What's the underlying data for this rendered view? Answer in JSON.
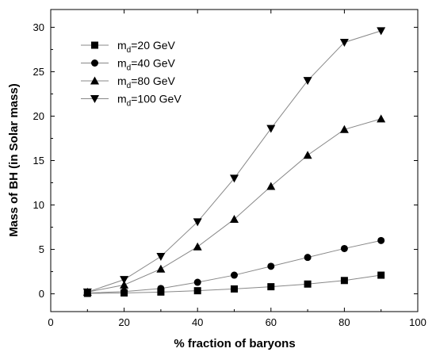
{
  "chart_data": {
    "type": "line",
    "xlabel": "% fraction of baryons",
    "ylabel": "Mass of BH (in Solar mass)",
    "xlim": [
      0,
      100
    ],
    "ylim": [
      -2,
      32
    ],
    "xticks": [
      0,
      20,
      40,
      60,
      80,
      100
    ],
    "yticks": [
      0,
      5,
      10,
      15,
      20,
      25,
      30
    ],
    "grid": false,
    "legend_position": "top-left",
    "x": [
      10,
      20,
      30,
      40,
      50,
      60,
      70,
      80,
      90
    ],
    "series": [
      {
        "name_main": "m",
        "name_sub": "d",
        "name_rest": "=20 GeV",
        "marker": "square",
        "values": [
          0.05,
          0.1,
          0.2,
          0.35,
          0.55,
          0.8,
          1.1,
          1.5,
          2.1
        ]
      },
      {
        "name_main": "m",
        "name_sub": "d",
        "name_rest": "=40 GeV",
        "marker": "circle",
        "values": [
          0.1,
          0.25,
          0.6,
          1.3,
          2.1,
          3.1,
          4.1,
          5.1,
          6.0
        ]
      },
      {
        "name_main": "m",
        "name_sub": "d",
        "name_rest": "=80 GeV",
        "marker": "triangle-up",
        "values": [
          0.2,
          1.0,
          2.8,
          5.3,
          8.4,
          12.1,
          15.6,
          18.5,
          19.7
        ]
      },
      {
        "name_main": "m",
        "name_sub": "d",
        "name_rest": "=100 GeV",
        "marker": "triangle-down",
        "values": [
          0.2,
          1.6,
          4.2,
          8.1,
          13.0,
          18.6,
          24.0,
          28.3,
          29.6
        ]
      }
    ],
    "colors": {
      "line": "#888888",
      "marker": "#000000",
      "axis": "#000000"
    }
  }
}
